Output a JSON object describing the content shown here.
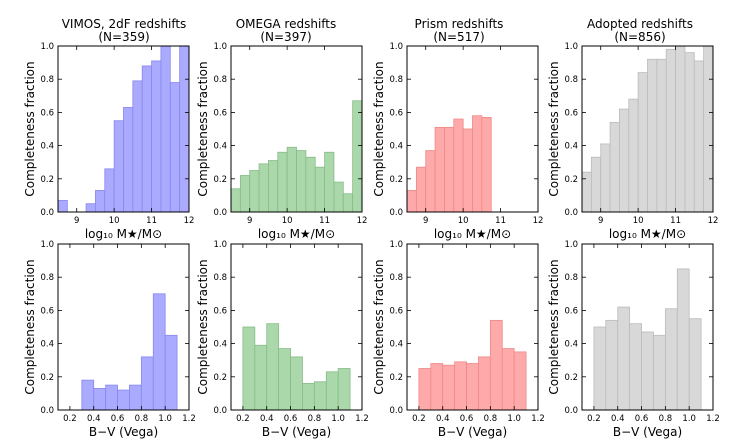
{
  "figure": {
    "col_titles": [
      {
        "line1": "VIMOS, 2dF redshifts",
        "line2": "(N=359)",
        "color": "#2222ee"
      },
      {
        "line1": "OMEGA redshifts",
        "line2": "(N=397)",
        "color": "#228822"
      },
      {
        "line1": "Prism redshifts",
        "line2": "(N=517)",
        "color": "#ee1111"
      },
      {
        "line1": "Adopted redshifts",
        "line2": "(N=856)",
        "color": "#000000"
      }
    ],
    "ylabel": "Completeness fraction",
    "xlabel_mass": "log₁₀ M★/M⊙",
    "xlabel_color": "B−V (Vega)",
    "series_colors": {
      "vimos": {
        "fill": "#aaaaff",
        "edge": "#8888ee"
      },
      "omega": {
        "fill": "#aad8aa",
        "edge": "#88bb88"
      },
      "prism": {
        "fill": "#ffaaaa",
        "edge": "#ee8888"
      },
      "adopted": {
        "fill": "#d8d8d8",
        "edge": "#bbbbbb"
      }
    }
  },
  "chart_data": [
    {
      "type": "bar",
      "panel": "vimos-mass",
      "series": "vimos",
      "xlim": [
        8.5,
        12
      ],
      "ylim": [
        0,
        1
      ],
      "xticks": [
        "9",
        "10",
        "11",
        "12"
      ],
      "xtick_values": [
        9,
        10,
        11,
        12
      ],
      "yticks": [
        "0.0",
        "0.2",
        "0.4",
        "0.6",
        "0.8",
        "1.0"
      ],
      "bin_width": 0.25,
      "bins": [
        8.5,
        8.75,
        9.0,
        9.25,
        9.5,
        9.75,
        10.0,
        10.25,
        10.5,
        10.75,
        11.0,
        11.25,
        11.5,
        11.75
      ],
      "values": [
        0.07,
        0.0,
        0.0,
        0.05,
        0.13,
        0.26,
        0.55,
        0.63,
        0.79,
        0.88,
        0.91,
        1.0,
        0.78,
        1.0
      ]
    },
    {
      "type": "bar",
      "panel": "omega-mass",
      "series": "omega",
      "xlim": [
        8.5,
        12
      ],
      "ylim": [
        0,
        1
      ],
      "xticks": [
        "9",
        "10",
        "11",
        "12"
      ],
      "xtick_values": [
        9,
        10,
        11,
        12
      ],
      "yticks": [
        "0.0",
        "0.2",
        "0.4",
        "0.6",
        "0.8",
        "1.0"
      ],
      "bin_width": 0.25,
      "bins": [
        8.5,
        8.75,
        9.0,
        9.25,
        9.5,
        9.75,
        10.0,
        10.25,
        10.5,
        10.75,
        11.0,
        11.25,
        11.5,
        11.75
      ],
      "values": [
        0.14,
        0.22,
        0.25,
        0.29,
        0.31,
        0.36,
        0.39,
        0.37,
        0.33,
        0.27,
        0.36,
        0.18,
        0.11,
        0.67
      ]
    },
    {
      "type": "bar",
      "panel": "prism-mass",
      "series": "prism",
      "xlim": [
        8.5,
        12
      ],
      "ylim": [
        0,
        1
      ],
      "xticks": [
        "9",
        "10",
        "11",
        "12"
      ],
      "xtick_values": [
        9,
        10,
        11,
        12
      ],
      "yticks": [
        "0.0",
        "0.2",
        "0.4",
        "0.6",
        "0.8",
        "1.0"
      ],
      "bin_width": 0.25,
      "bins": [
        8.5,
        8.75,
        9.0,
        9.25,
        9.5,
        9.75,
        10.0,
        10.25,
        10.5,
        10.75
      ],
      "values": [
        0.13,
        0.27,
        0.37,
        0.51,
        0.51,
        0.56,
        0.5,
        0.58,
        0.57,
        0.0
      ]
    },
    {
      "type": "bar",
      "panel": "adopted-mass",
      "series": "adopted",
      "xlim": [
        8.5,
        12
      ],
      "ylim": [
        0,
        1
      ],
      "xticks": [
        "9",
        "10",
        "11",
        "12"
      ],
      "xtick_values": [
        9,
        10,
        11,
        12
      ],
      "yticks": [
        "0.0",
        "0.2",
        "0.4",
        "0.6",
        "0.8",
        "1.0"
      ],
      "bin_width": 0.25,
      "bins": [
        8.5,
        8.75,
        9.0,
        9.25,
        9.5,
        9.75,
        10.0,
        10.25,
        10.5,
        10.75,
        11.0,
        11.25,
        11.5,
        11.75
      ],
      "values": [
        0.24,
        0.33,
        0.41,
        0.54,
        0.62,
        0.68,
        0.84,
        0.92,
        0.92,
        0.98,
        1.0,
        0.96,
        0.91,
        1.0
      ]
    },
    {
      "type": "bar",
      "panel": "vimos-color",
      "series": "vimos",
      "xlim": [
        0.1,
        1.2
      ],
      "ylim": [
        0,
        1
      ],
      "xticks": [
        "0.2",
        "0.4",
        "0.6",
        "0.8",
        "1.0",
        "1.2"
      ],
      "xtick_values": [
        0.2,
        0.4,
        0.6,
        0.8,
        1.0,
        1.2
      ],
      "yticks": [
        "0.0",
        "0.2",
        "0.4",
        "0.6",
        "0.8",
        "1.0"
      ],
      "bin_width": 0.1,
      "bins": [
        0.3,
        0.4,
        0.5,
        0.6,
        0.7,
        0.8,
        0.9,
        1.0
      ],
      "values": [
        0.18,
        0.13,
        0.15,
        0.12,
        0.15,
        0.32,
        0.7,
        0.45
      ]
    },
    {
      "type": "bar",
      "panel": "omega-color",
      "series": "omega",
      "xlim": [
        0.1,
        1.2
      ],
      "ylim": [
        0,
        1
      ],
      "xticks": [
        "0.2",
        "0.4",
        "0.6",
        "0.8",
        "1.0",
        "1.2"
      ],
      "xtick_values": [
        0.2,
        0.4,
        0.6,
        0.8,
        1.0,
        1.2
      ],
      "yticks": [
        "0.0",
        "0.2",
        "0.4",
        "0.6",
        "0.8",
        "1.0"
      ],
      "bin_width": 0.1,
      "bins": [
        0.2,
        0.3,
        0.4,
        0.5,
        0.6,
        0.7,
        0.8,
        0.9,
        1.0
      ],
      "values": [
        0.5,
        0.39,
        0.52,
        0.37,
        0.32,
        0.16,
        0.17,
        0.23,
        0.25
      ]
    },
    {
      "type": "bar",
      "panel": "prism-color",
      "series": "prism",
      "xlim": [
        0.1,
        1.2
      ],
      "ylim": [
        0,
        1
      ],
      "xticks": [
        "0.2",
        "0.4",
        "0.6",
        "0.8",
        "1.0",
        "1.2"
      ],
      "xtick_values": [
        0.2,
        0.4,
        0.6,
        0.8,
        1.0,
        1.2
      ],
      "yticks": [
        "0.0",
        "0.2",
        "0.4",
        "0.6",
        "0.8",
        "1.0"
      ],
      "bin_width": 0.1,
      "bins": [
        0.2,
        0.3,
        0.4,
        0.5,
        0.6,
        0.7,
        0.8,
        0.9,
        1.0
      ],
      "values": [
        0.25,
        0.28,
        0.27,
        0.29,
        0.28,
        0.32,
        0.54,
        0.37,
        0.35
      ]
    },
    {
      "type": "bar",
      "panel": "adopted-color",
      "series": "adopted",
      "xlim": [
        0.1,
        1.2
      ],
      "ylim": [
        0,
        1
      ],
      "xticks": [
        "0.2",
        "0.4",
        "0.6",
        "0.8",
        "1.0",
        "1.2"
      ],
      "xtick_values": [
        0.2,
        0.4,
        0.6,
        0.8,
        1.0,
        1.2
      ],
      "yticks": [
        "0.0",
        "0.2",
        "0.4",
        "0.6",
        "0.8",
        "1.0"
      ],
      "bin_width": 0.1,
      "bins": [
        0.2,
        0.3,
        0.4,
        0.5,
        0.6,
        0.7,
        0.8,
        0.9,
        1.0
      ],
      "values": [
        0.5,
        0.54,
        0.62,
        0.52,
        0.47,
        0.45,
        0.61,
        0.85,
        0.55
      ]
    }
  ]
}
